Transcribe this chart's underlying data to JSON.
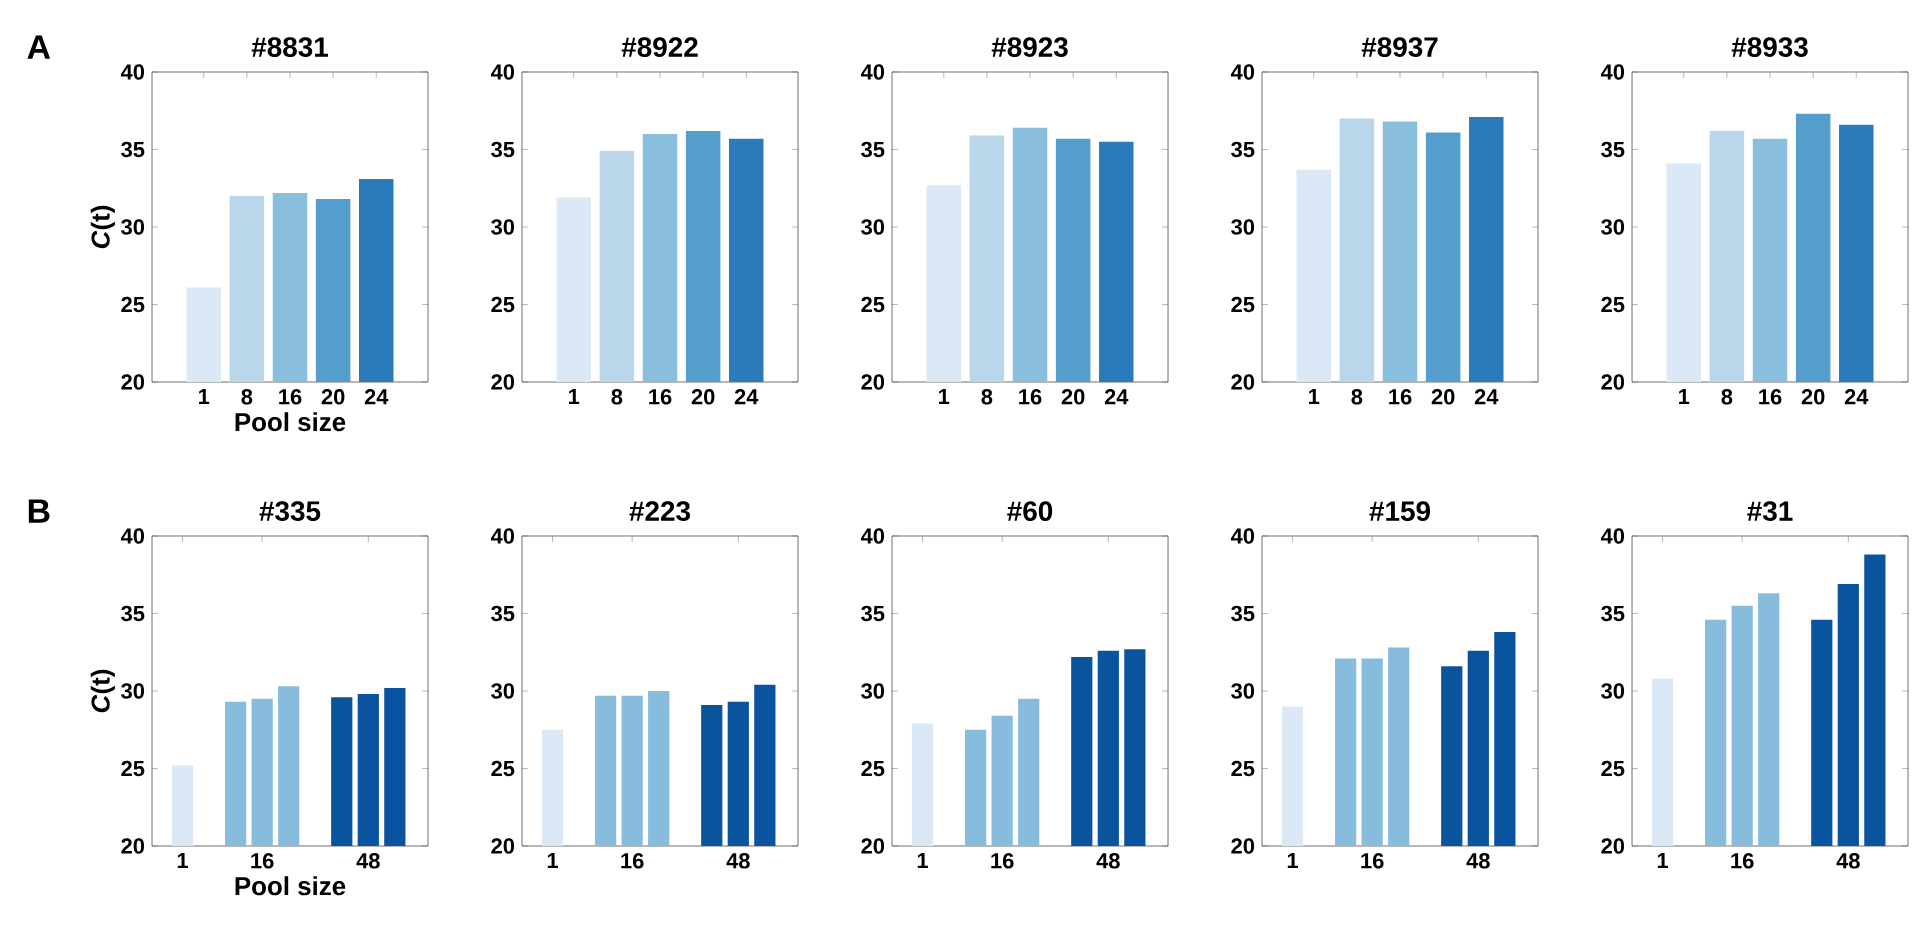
{
  "chart_data": [
    {
      "type": "bar",
      "title": "#8831",
      "annotations": [
        "A"
      ],
      "xlabel": "Pool size",
      "ylabel": "*C*(t)",
      "categories": [
        "1",
        "8",
        "16",
        "20",
        "24"
      ],
      "values": [
        26.1,
        32.0,
        32.2,
        31.8,
        33.1
      ],
      "colors": [
        "#dbe9f6",
        "#bad6eb",
        "#89bedc",
        "#539ecd",
        "#2b7bba"
      ],
      "ylim": [
        20,
        40
      ],
      "yticks": [
        20,
        25,
        30,
        35,
        40
      ]
    },
    {
      "type": "bar",
      "title": "#8922",
      "categories": [
        "1",
        "8",
        "16",
        "20",
        "24"
      ],
      "values": [
        31.9,
        34.9,
        36.0,
        36.2,
        35.7
      ],
      "colors": [
        "#dbe9f6",
        "#bad6eb",
        "#89bedc",
        "#539ecd",
        "#2b7bba"
      ],
      "ylim": [
        20,
        40
      ],
      "yticks": [
        20,
        25,
        30,
        35,
        40
      ]
    },
    {
      "type": "bar",
      "title": "#8923",
      "categories": [
        "1",
        "8",
        "16",
        "20",
        "24"
      ],
      "values": [
        32.7,
        35.9,
        36.4,
        35.7,
        35.5
      ],
      "colors": [
        "#dbe9f6",
        "#bad6eb",
        "#89bedc",
        "#539ecd",
        "#2b7bba"
      ],
      "ylim": [
        20,
        40
      ],
      "yticks": [
        20,
        25,
        30,
        35,
        40
      ]
    },
    {
      "type": "bar",
      "title": "#8937",
      "categories": [
        "1",
        "8",
        "16",
        "20",
        "24"
      ],
      "values": [
        33.7,
        37.0,
        36.8,
        36.1,
        37.1
      ],
      "colors": [
        "#dbe9f6",
        "#bad6eb",
        "#89bedc",
        "#539ecd",
        "#2b7bba"
      ],
      "ylim": [
        20,
        40
      ],
      "yticks": [
        20,
        25,
        30,
        35,
        40
      ]
    },
    {
      "type": "bar",
      "title": "#8933",
      "categories": [
        "1",
        "8",
        "16",
        "20",
        "24"
      ],
      "values": [
        34.1,
        36.2,
        35.7,
        37.3,
        36.6
      ],
      "colors": [
        "#dbe9f6",
        "#bad6eb",
        "#89bedc",
        "#539ecd",
        "#2b7bba"
      ],
      "ylim": [
        20,
        40
      ],
      "yticks": [
        20,
        25,
        30,
        35,
        40
      ]
    },
    {
      "type": "bar",
      "title": "#335",
      "annotations": [
        "B"
      ],
      "xlabel": "Pool size",
      "ylabel": "*C*(t)",
      "categories": [
        "1",
        null,
        null,
        "16",
        null,
        null,
        null,
        "48",
        null
      ],
      "values": [
        25.2,
        null,
        29.3,
        29.5,
        30.3,
        null,
        29.6,
        29.8,
        30.2
      ],
      "colors": [
        "#dbe9f6",
        null,
        "#88bcdd",
        "#88bcdd",
        "#88bcdd",
        null,
        "#0a539e",
        "#0a539e",
        "#0a539e"
      ],
      "ylim": [
        20,
        40
      ],
      "yticks": [
        20,
        25,
        30,
        35,
        40
      ]
    },
    {
      "type": "bar",
      "title": "#223",
      "categories": [
        "1",
        null,
        null,
        "16",
        null,
        null,
        null,
        "48",
        null
      ],
      "values": [
        27.5,
        null,
        29.7,
        29.7,
        30.0,
        null,
        29.1,
        29.3,
        30.4
      ],
      "colors": [
        "#dbe9f6",
        null,
        "#88bcdd",
        "#88bcdd",
        "#88bcdd",
        null,
        "#0a539e",
        "#0a539e",
        "#0a539e"
      ],
      "ylim": [
        20,
        40
      ],
      "yticks": [
        20,
        25,
        30,
        35,
        40
      ]
    },
    {
      "type": "bar",
      "title": "#60",
      "categories": [
        "1",
        null,
        null,
        "16",
        null,
        null,
        null,
        "48",
        null
      ],
      "values": [
        27.9,
        null,
        27.5,
        28.4,
        29.5,
        null,
        32.2,
        32.6,
        32.7
      ],
      "colors": [
        "#dbe9f6",
        null,
        "#88bcdd",
        "#88bcdd",
        "#88bcdd",
        null,
        "#0a539e",
        "#0a539e",
        "#0a539e"
      ],
      "ylim": [
        20,
        40
      ],
      "yticks": [
        20,
        25,
        30,
        35,
        40
      ]
    },
    {
      "type": "bar",
      "title": "#159",
      "categories": [
        "1",
        null,
        null,
        "16",
        null,
        null,
        null,
        "48",
        null
      ],
      "values": [
        29.0,
        null,
        32.1,
        32.1,
        32.8,
        null,
        31.6,
        32.6,
        33.8
      ],
      "colors": [
        "#dbe9f6",
        null,
        "#88bcdd",
        "#88bcdd",
        "#88bcdd",
        null,
        "#0a539e",
        "#0a539e",
        "#0a539e"
      ],
      "ylim": [
        20,
        40
      ],
      "yticks": [
        20,
        25,
        30,
        35,
        40
      ]
    },
    {
      "type": "bar",
      "title": "#31",
      "categories": [
        "1",
        null,
        null,
        "16",
        null,
        null,
        null,
        "48",
        null
      ],
      "values": [
        30.8,
        null,
        34.6,
        35.5,
        36.3,
        null,
        34.6,
        36.9,
        38.8
      ],
      "colors": [
        "#dbe9f6",
        null,
        "#88bcdd",
        "#88bcdd",
        "#88bcdd",
        null,
        "#0a539e",
        "#0a539e",
        "#0a539e"
      ],
      "ylim": [
        20,
        40
      ],
      "yticks": [
        20,
        25,
        30,
        35,
        40
      ]
    }
  ]
}
